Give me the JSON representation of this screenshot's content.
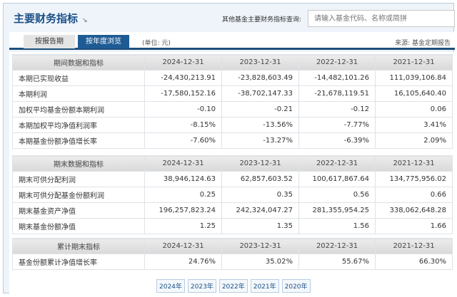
{
  "header": {
    "title": "主要财务指标",
    "title_icon": "arrow-down-right-icon",
    "query_label": "其他基金主要财务指标查询:",
    "search_placeholder": "请输入基金代码、名称或简拼"
  },
  "tabs": [
    {
      "label": "按报告期",
      "active": false
    },
    {
      "label": "按年度浏览",
      "active": true
    }
  ],
  "unit": "(单位: 元)",
  "source": "来源: 基金定期报告",
  "sections": [
    {
      "header": [
        "期间数据和指标",
        "2024-12-31",
        "2023-12-31",
        "2022-12-31",
        "2021-12-31"
      ],
      "rows": [
        [
          "本期已实现收益",
          "-24,430,213.91",
          "-23,828,603.49",
          "-14,482,101.26",
          "111,039,106.84"
        ],
        [
          "本期利润",
          "-17,580,152.16",
          "-38,702,147.33",
          "-21,678,119.51",
          "16,105,640.40"
        ],
        [
          "加权平均基金份额本期利润",
          "-0.10",
          "-0.21",
          "-0.12",
          "0.06"
        ],
        [
          "本期加权平均净值利润率",
          "-8.15%",
          "-13.56%",
          "-7.77%",
          "3.41%"
        ],
        [
          "本期基金份额净值增长率",
          "-7.60%",
          "-13.27%",
          "-6.39%",
          "2.09%"
        ]
      ]
    },
    {
      "header": [
        "期末数据和指标",
        "2024-12-31",
        "2023-12-31",
        "2022-12-31",
        "2021-12-31"
      ],
      "rows": [
        [
          "期末可供分配利润",
          "38,946,124.63",
          "62,857,603.52",
          "100,617,867.64",
          "134,775,956.02"
        ],
        [
          "期末可供分配基金份额利润",
          "0.25",
          "0.35",
          "0.56",
          "0.66"
        ],
        [
          "期末基金资产净值",
          "196,257,823.24",
          "242,324,047.27",
          "281,355,954.25",
          "338,062,648.28"
        ],
        [
          "期末基金份额净值",
          "1.25",
          "1.35",
          "1.56",
          "1.66"
        ]
      ]
    },
    {
      "header": [
        "累计期末指标",
        "2024-12-31",
        "2023-12-31",
        "2022-12-31",
        "2021-12-31"
      ],
      "rows": [
        [
          "基金份额累计净值增长率",
          "24.76%",
          "35.02%",
          "55.67%",
          "66.30%"
        ]
      ]
    }
  ],
  "years": [
    "2024年",
    "2023年",
    "2022年",
    "2021年",
    "2020年"
  ]
}
